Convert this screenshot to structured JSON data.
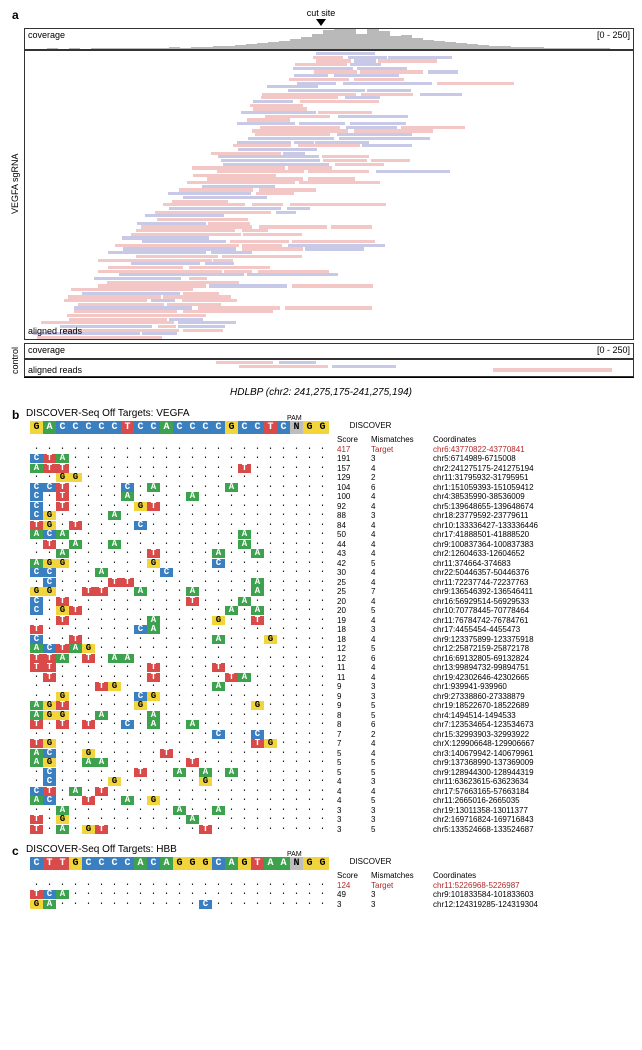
{
  "panel_a": {
    "label": "a",
    "cut_site_label": "cut site",
    "coverage_label": "coverage",
    "aligned_reads_label": "aligned reads",
    "range_label": "[0 - 250]",
    "conditions": [
      "VEGFA sgRNA",
      "control"
    ],
    "coverage_heights_vegfa": [
      2,
      2,
      3,
      2,
      3,
      2,
      3,
      4,
      3,
      4,
      5,
      4,
      5,
      7,
      6,
      8,
      9,
      12,
      15,
      18,
      22,
      26,
      30,
      36,
      45,
      55,
      70,
      88,
      100,
      90,
      70,
      95,
      80,
      60,
      64,
      50,
      42,
      38,
      30,
      26,
      22,
      18,
      14,
      12,
      10,
      8,
      7,
      6,
      5,
      4,
      4,
      3,
      3,
      2,
      2
    ],
    "coverage_heights_control": [
      1,
      0,
      1,
      0,
      1,
      1,
      0,
      1,
      1,
      1,
      1,
      1,
      1,
      1,
      1,
      1,
      1,
      1,
      1,
      1,
      1,
      1,
      1,
      1,
      1,
      1,
      1,
      1,
      1,
      1,
      1,
      1,
      1,
      1,
      1,
      1,
      1,
      1,
      1,
      1,
      1,
      0,
      1,
      1,
      0,
      1,
      1,
      0,
      1,
      0,
      1,
      1,
      0,
      1,
      1
    ],
    "read_colors": {
      "fwd": "#f4c7c7",
      "rev": "#c8c9e6",
      "insert": "#d8d8e8"
    },
    "locus_label": "HDLBP (chr2: 241,275,175-241,275,194)",
    "vegfa_read_count": 78,
    "control_read_count": 3
  },
  "sequence_colors": {
    "A": "#3da24e",
    "C": "#3a7fc0",
    "G": "#f2d43b",
    "T": "#d94b4b",
    "N": "#cfcfcf",
    "pam_bg": "#bdbdbd"
  },
  "panel_b": {
    "label": "b",
    "title": "DISCOVER-Seq Off Targets: VEGFA",
    "pam_label": "PAM",
    "columns": {
      "score": "Score",
      "mm": "Mismatches",
      "coord": "Coordinates",
      "group": "DISCOVER"
    },
    "reference": "GACCCCCTCCACCCCGCCTCNGG",
    "target_row": {
      "score": 417,
      "mm": "Target",
      "coord": "chr6:43770822-43770841",
      "color": "#b02a2a"
    },
    "rows": [
      {
        "mis": {
          "0": "C",
          "1": "T",
          "2": "A"
        },
        "score": 191,
        "mm": 3,
        "coord": "chr5:6714989-6715008"
      },
      {
        "mis": {
          "0": "A",
          "1": "T",
          "2": "T",
          "16": "T"
        },
        "score": 157,
        "mm": 4,
        "coord": "chr2:241275175-241275194"
      },
      {
        "mis": {
          "2": "G",
          "3": "G"
        },
        "score": 129,
        "mm": 2,
        "coord": "chr11:31795932-31795951"
      },
      {
        "mis": {
          "0": "C",
          "1": "C",
          "2": "T",
          "7": "C",
          "9": "A",
          "15": "A"
        },
        "score": 104,
        "mm": 6,
        "coord": "chr1:151059393-151059412"
      },
      {
        "mis": {
          "0": "C",
          "2": "T",
          "7": "A",
          "12": "A"
        },
        "score": 100,
        "mm": 4,
        "coord": "chr4:38535990-38536009"
      },
      {
        "mis": {
          "0": "C",
          "2": "T",
          "8": "G",
          "9": "T"
        },
        "score": 92,
        "mm": 4,
        "coord": "chr5:139648655-139648674"
      },
      {
        "mis": {
          "0": "C",
          "1": "G",
          "6": "A"
        },
        "score": 88,
        "mm": 3,
        "coord": "chr18:23779592-23779611"
      },
      {
        "mis": {
          "0": "T",
          "1": "G",
          "3": "T",
          "8": "C"
        },
        "score": 84,
        "mm": 4,
        "coord": "chr10:133336427-133336446"
      },
      {
        "mis": {
          "0": "A",
          "1": "C",
          "2": "A",
          "16": "A"
        },
        "score": 50,
        "mm": 4,
        "coord": "chr17:41888501-41888520"
      },
      {
        "mis": {
          "1": "T",
          "3": "A",
          "6": "A",
          "16": "A"
        },
        "score": 44,
        "mm": 4,
        "coord": "chr9:100837364-100837383"
      },
      {
        "mis": {
          "2": "A",
          "9": "T",
          "14": "A",
          "17": "A"
        },
        "score": 43,
        "mm": 4,
        "coord": "chr2:12604633-12604652"
      },
      {
        "mis": {
          "0": "A",
          "1": "G",
          "2": "G",
          "9": "G",
          "14": "C"
        },
        "score": 42,
        "mm": 5,
        "coord": "chr11:374664-374683"
      },
      {
        "mis": {
          "0": "C",
          "1": "C",
          "5": "A",
          "10": "C"
        },
        "score": 30,
        "mm": 4,
        "coord": "chr22:50446357-50446376"
      },
      {
        "mis": {
          "1": "C",
          "6": "T",
          "7": "T",
          "17": "A"
        },
        "score": 25,
        "mm": 4,
        "coord": "chr11:72237744-72237763"
      },
      {
        "mis": {
          "0": "G",
          "1": "G",
          "4": "T",
          "5": "T",
          "8": "A",
          "12": "A",
          "17": "A"
        },
        "score": 25,
        "mm": 7,
        "coord": "chr9:136546392-136546411"
      },
      {
        "mis": {
          "0": "C",
          "2": "T",
          "12": "T",
          "16": "A"
        },
        "score": 20,
        "mm": 4,
        "coord": "chr16:56929514-56929533"
      },
      {
        "mis": {
          "0": "C",
          "2": "G",
          "3": "T",
          "15": "A",
          "17": "A"
        },
        "score": 20,
        "mm": 5,
        "coord": "chr10:70778445-70778464"
      },
      {
        "mis": {
          "2": "T",
          "9": "A",
          "14": "G",
          "17": "T"
        },
        "score": 19,
        "mm": 4,
        "coord": "chr11:76784742-76784761"
      },
      {
        "mis": {
          "0": "T",
          "8": "C",
          "9": "A"
        },
        "score": 18,
        "mm": 3,
        "coord": "chr17:4455454-4455473"
      },
      {
        "mis": {
          "0": "C",
          "3": "T",
          "14": "A",
          "18": "G"
        },
        "score": 18,
        "mm": 4,
        "coord": "chr9:123375899-123375918"
      },
      {
        "mis": {
          "0": "A",
          "1": "C",
          "2": "T",
          "3": "A",
          "4": "G"
        },
        "score": 12,
        "mm": 5,
        "coord": "chr12:25872159-25872178"
      },
      {
        "mis": {
          "0": "T",
          "1": "T",
          "2": "A",
          "4": "T",
          "6": "A",
          "7": "A"
        },
        "score": 12,
        "mm": 6,
        "coord": "chr16:69132805-69132824"
      },
      {
        "mis": {
          "0": "T",
          "1": "T",
          "9": "T",
          "14": "T"
        },
        "score": 11,
        "mm": 4,
        "coord": "chr13:99894732-99894751"
      },
      {
        "mis": {
          "1": "T",
          "9": "T",
          "15": "T",
          "16": "A"
        },
        "score": 11,
        "mm": 4,
        "coord": "chr19:42302646-42302665"
      },
      {
        "mis": {
          "5": "T",
          "6": "G",
          "14": "A"
        },
        "score": 9,
        "mm": 3,
        "coord": "chr1:939941-939960"
      },
      {
        "mis": {
          "2": "G",
          "8": "C",
          "9": "G"
        },
        "score": 9,
        "mm": 3,
        "coord": "chr9:27338860-27338879"
      },
      {
        "mis": {
          "0": "A",
          "1": "G",
          "2": "T",
          "8": "G",
          "17": "G"
        },
        "score": 9,
        "mm": 5,
        "coord": "chr19:18522670-18522689"
      },
      {
        "mis": {
          "0": "A",
          "1": "G",
          "2": "G",
          "5": "A",
          "9": "A"
        },
        "score": 8,
        "mm": 5,
        "coord": "chr4:1494514-1494533"
      },
      {
        "mis": {
          "0": "T",
          "2": "T",
          "4": "T",
          "7": "C",
          "9": "A",
          "12": "A"
        },
        "score": 8,
        "mm": 6,
        "coord": "chr7:123534654-123534673"
      },
      {
        "mis": {
          "14": "C",
          "17": "C"
        },
        "score": 7,
        "mm": 2,
        "coord": "chr15:32993903-32993922"
      },
      {
        "mis": {
          "0": "T",
          "1": "G",
          "17": "T",
          "18": "G"
        },
        "score": 7,
        "mm": 4,
        "coord": "chrX:129906648-129906667"
      },
      {
        "mis": {
          "0": "A",
          "1": "C",
          "4": "G",
          "10": "T"
        },
        "score": 5,
        "mm": 4,
        "coord": "chr3:140679942-140679961"
      },
      {
        "mis": {
          "0": "A",
          "1": "G",
          "4": "A",
          "5": "A",
          "12": "T"
        },
        "score": 5,
        "mm": 5,
        "coord": "chr9:137368990-137369009"
      },
      {
        "mis": {
          "1": "C",
          "8": "T",
          "11": "A",
          "13": "A",
          "15": "A"
        },
        "score": 5,
        "mm": 5,
        "coord": "chr9:128944300-128944319"
      },
      {
        "mis": {
          "1": "C",
          "6": "G",
          "13": "G"
        },
        "score": 4,
        "mm": 3,
        "coord": "chr11:63623615-63623634"
      },
      {
        "mis": {
          "0": "C",
          "1": "T",
          "3": "A",
          "5": "T"
        },
        "score": 4,
        "mm": 4,
        "coord": "chr17:57663165-57663184"
      },
      {
        "mis": {
          "0": "A",
          "1": "C",
          "4": "T",
          "7": "A",
          "9": "G"
        },
        "score": 4,
        "mm": 5,
        "coord": "chr11:2665016-2665035"
      },
      {
        "mis": {
          "2": "A",
          "11": "A",
          "14": "A"
        },
        "score": 3,
        "mm": 3,
        "coord": "chr19:13011358-13011377"
      },
      {
        "mis": {
          "0": "T",
          "2": "G",
          "12": "A"
        },
        "score": 3,
        "mm": 3,
        "coord": "chr2:169716824-169716843"
      },
      {
        "mis": {
          "0": "T",
          "2": "A",
          "4": "G",
          "5": "T",
          "13": "T"
        },
        "score": 3,
        "mm": 5,
        "coord": "chr5:133524668-133524687"
      }
    ]
  },
  "panel_c": {
    "label": "c",
    "title": "DISCOVER-Seq Off Targets: HBB",
    "reference": "CTTGCCCCACAGGGCAGTAANGG",
    "target_row": {
      "score": 124,
      "mm": "Target",
      "coord": "chr11:5226968-5226987",
      "color": "#b02a2a"
    },
    "rows": [
      {
        "mis": {
          "0": "T",
          "1": "C",
          "2": "A"
        },
        "score": 49,
        "mm": 3,
        "coord": "chr9:101833584-101833603"
      },
      {
        "mis": {
          "0": "G",
          "1": "A",
          "13": "C"
        },
        "score": 3,
        "mm": 3,
        "coord": "chr12:124319285-124319304"
      }
    ]
  }
}
